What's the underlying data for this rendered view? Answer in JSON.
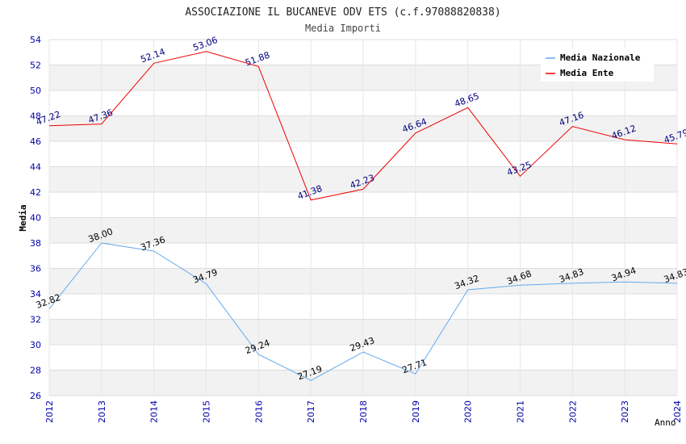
{
  "chart_data": {
    "type": "line",
    "title": "ASSOCIAZIONE IL BUCANEVE ODV ETS (c.f.97088820838)",
    "subtitle": "Media Importi",
    "xlabel": "Anno",
    "ylabel": "Media",
    "ylim": [
      26,
      54
    ],
    "y_ticks": [
      26,
      28,
      30,
      32,
      34,
      36,
      38,
      40,
      42,
      44,
      46,
      48,
      50,
      52,
      54
    ],
    "categories": [
      "2012",
      "2013",
      "2014",
      "2015",
      "2016",
      "2017",
      "2018",
      "2019",
      "2020",
      "2021",
      "2022",
      "2023",
      "2024"
    ],
    "grid": true,
    "legend_position": "top-right",
    "series": [
      {
        "name": "Media Nazionale",
        "color": "#66aaee",
        "label_color": "#000000",
        "values": [
          32.82,
          38.0,
          37.36,
          34.79,
          29.24,
          27.19,
          29.43,
          27.71,
          34.32,
          34.68,
          34.83,
          34.94,
          34.83
        ],
        "labels": [
          "32.82",
          "38.00",
          "37.36",
          "34.79",
          "29.24",
          "27.19",
          "29.43",
          "27.71",
          "34.32",
          "34.68",
          "34.83",
          "34.94",
          "34.83"
        ]
      },
      {
        "name": "Media Ente",
        "color": "#ee0000",
        "label_color": "#000080",
        "values": [
          47.22,
          47.36,
          52.14,
          53.06,
          51.88,
          41.38,
          42.23,
          46.64,
          48.65,
          43.25,
          47.16,
          46.12,
          45.79
        ],
        "labels": [
          "47.22",
          "47.36",
          "52.14",
          "53.06",
          "51.88",
          "41.38",
          "42.23",
          "46.64",
          "48.65",
          "43.25",
          "47.16",
          "46.12",
          "45.79"
        ]
      }
    ]
  }
}
